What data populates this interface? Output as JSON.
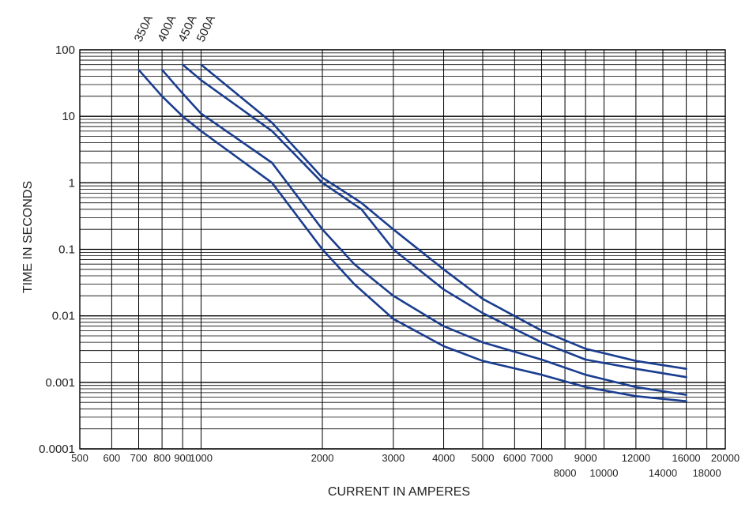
{
  "chart_data": {
    "type": "line",
    "xlabel": "CURRENT IN AMPERES",
    "ylabel": "TIME IN SECONDS",
    "x_scale": "log",
    "y_scale": "log",
    "xlim": [
      500,
      20000
    ],
    "ylim": [
      0.0001,
      100
    ],
    "grid": true,
    "line_color": "#1a3d8f",
    "y_ticks": [
      {
        "value": 100,
        "label": "100"
      },
      {
        "value": 10,
        "label": "10"
      },
      {
        "value": 1,
        "label": "1"
      },
      {
        "value": 0.1,
        "label": "0.1"
      },
      {
        "value": 0.01,
        "label": "0.01"
      },
      {
        "value": 0.001,
        "label": "0.001"
      },
      {
        "value": 0.0001,
        "label": "0.0001"
      }
    ],
    "x_ticks": [
      {
        "value": 500,
        "label": "500",
        "row": 0
      },
      {
        "value": 600,
        "label": "600",
        "row": 0
      },
      {
        "value": 700,
        "label": "700",
        "row": 0
      },
      {
        "value": 800,
        "label": "800",
        "row": 0
      },
      {
        "value": 900,
        "label": "900",
        "row": 0
      },
      {
        "value": 1000,
        "label": "1000",
        "row": 0
      },
      {
        "value": 2000,
        "label": "2000",
        "row": 0
      },
      {
        "value": 3000,
        "label": "3000",
        "row": 0
      },
      {
        "value": 4000,
        "label": "4000",
        "row": 0
      },
      {
        "value": 5000,
        "label": "5000",
        "row": 0
      },
      {
        "value": 6000,
        "label": "6000",
        "row": 0
      },
      {
        "value": 7000,
        "label": "7000",
        "row": 0
      },
      {
        "value": 8000,
        "label": "8000",
        "row": 1
      },
      {
        "value": 9000,
        "label": "9000",
        "row": 0
      },
      {
        "value": 10000,
        "label": "10000",
        "row": 1
      },
      {
        "value": 12000,
        "label": "12000",
        "row": 0
      },
      {
        "value": 14000,
        "label": "14000",
        "row": 1
      },
      {
        "value": 16000,
        "label": "16000",
        "row": 0
      },
      {
        "value": 18000,
        "label": "18000",
        "row": 1
      },
      {
        "value": 20000,
        "label": "20000",
        "row": 0
      }
    ],
    "series": [
      {
        "name": "350A",
        "points": [
          [
            700,
            50
          ],
          [
            800,
            20
          ],
          [
            900,
            10
          ],
          [
            1000,
            6
          ],
          [
            1500,
            1
          ],
          [
            2000,
            0.1
          ],
          [
            2400,
            0.03
          ],
          [
            3000,
            0.009
          ],
          [
            4000,
            0.0035
          ],
          [
            5000,
            0.0021
          ],
          [
            7000,
            0.0013
          ],
          [
            9000,
            0.00085
          ],
          [
            12000,
            0.00062
          ],
          [
            16000,
            0.00052
          ]
        ]
      },
      {
        "name": "400A",
        "points": [
          [
            800,
            50
          ],
          [
            900,
            22
          ],
          [
            1000,
            11
          ],
          [
            1500,
            2
          ],
          [
            2000,
            0.2
          ],
          [
            2400,
            0.06
          ],
          [
            3000,
            0.02
          ],
          [
            4000,
            0.007
          ],
          [
            5000,
            0.004
          ],
          [
            7000,
            0.0022
          ],
          [
            9000,
            0.0013
          ],
          [
            12000,
            0.00085
          ],
          [
            16000,
            0.00065
          ]
        ]
      },
      {
        "name": "450A",
        "points": [
          [
            900,
            60
          ],
          [
            1000,
            35
          ],
          [
            1500,
            6
          ],
          [
            2000,
            1
          ],
          [
            2500,
            0.4
          ],
          [
            3000,
            0.1
          ],
          [
            4000,
            0.025
          ],
          [
            5000,
            0.011
          ],
          [
            7000,
            0.004
          ],
          [
            9000,
            0.0022
          ],
          [
            12000,
            0.0016
          ],
          [
            16000,
            0.0012
          ]
        ]
      },
      {
        "name": "500A",
        "points": [
          [
            1000,
            60
          ],
          [
            1500,
            8
          ],
          [
            2000,
            1.2
          ],
          [
            2500,
            0.5
          ],
          [
            3000,
            0.2
          ],
          [
            4000,
            0.05
          ],
          [
            5000,
            0.018
          ],
          [
            7000,
            0.006
          ],
          [
            9000,
            0.0032
          ],
          [
            12000,
            0.0021
          ],
          [
            16000,
            0.0016
          ]
        ]
      }
    ]
  }
}
